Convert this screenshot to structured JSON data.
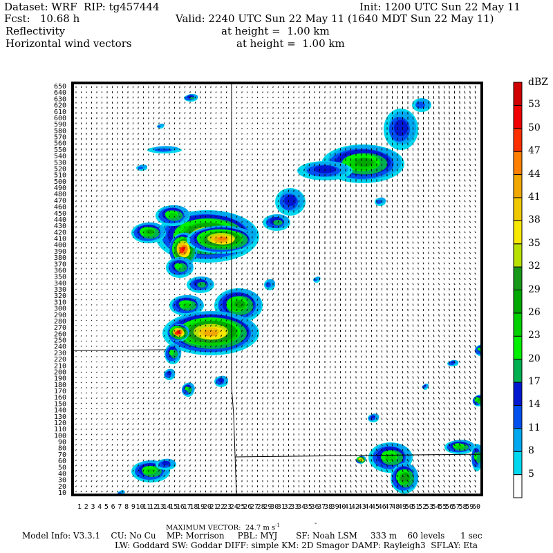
{
  "header": {
    "dataset": "Dataset: WRF  RIP: tg457444",
    "init": "Init: 1200 UTC Sun 22 May 11",
    "fcst": "Fcst:   10.68 h",
    "valid": "Valid: 2240 UTC Sun 22 May 11 (1640 MDT Sun 22 May 11)",
    "field1": "Reflectivity",
    "field1_height": "at height =  1.00 km",
    "field2": "Horizontal wind vectors",
    "field2_height": "at height =  1.00 km"
  },
  "axes": {
    "y_ticks": [
      10,
      20,
      30,
      40,
      50,
      60,
      70,
      80,
      90,
      100,
      110,
      120,
      130,
      140,
      150,
      160,
      170,
      180,
      190,
      200,
      210,
      220,
      230,
      240,
      250,
      260,
      270,
      280,
      290,
      300,
      310,
      320,
      330,
      340,
      350,
      360,
      370,
      380,
      390,
      400,
      410,
      420,
      430,
      440,
      450,
      460,
      470,
      480,
      490,
      500,
      510,
      520,
      530,
      540,
      550,
      560,
      570,
      580,
      590,
      600,
      610,
      620,
      630,
      640,
      650
    ],
    "x_ticks": [
      1,
      2,
      3,
      4,
      5,
      6,
      7,
      8,
      9,
      10,
      11,
      12,
      13,
      14,
      15,
      16,
      17,
      18,
      19,
      20,
      21,
      22,
      23,
      24,
      25,
      26,
      27,
      28,
      29,
      30,
      31,
      32,
      33,
      34,
      35,
      36,
      37,
      38,
      39,
      40,
      41,
      42,
      43,
      44,
      45,
      46,
      47,
      48,
      49,
      50,
      51,
      52,
      53,
      54,
      55,
      56,
      57,
      58,
      59,
      60
    ]
  },
  "colorbar": {
    "unit": "dBZ",
    "labels": [
      "5",
      "8",
      "11",
      "14",
      "17",
      "20",
      "23",
      "26",
      "29",
      "32",
      "35",
      "38",
      "41",
      "44",
      "47",
      "50",
      "53"
    ],
    "colors": [
      "#ffffff",
      "#00d8f0",
      "#00a8f0",
      "#0050f0",
      "#0018d0",
      "#00b050",
      "#00f000",
      "#00d000",
      "#00a800",
      "#189818",
      "#b8e000",
      "#f8e800",
      "#f0c800",
      "#f0a800",
      "#ff8000",
      "#ff3000",
      "#f00000",
      "#d00000"
    ]
  },
  "footer": {
    "max_vector": "MAXIMUM VECTOR:  24.7 m s",
    "max_vector_exp": "-1",
    "model_info": "Model Info: V3.3.1    CU: No Cu    MP: Morrison     PBL: MYJ       SF: Noah LSM     333 m    60 levels      1 sec",
    "model_info2": "LW: Goddard SW: Goddar DIFF: simple KM: 2D Smagor DAMP: Rayleigh3  SFLAY: Eta"
  }
}
